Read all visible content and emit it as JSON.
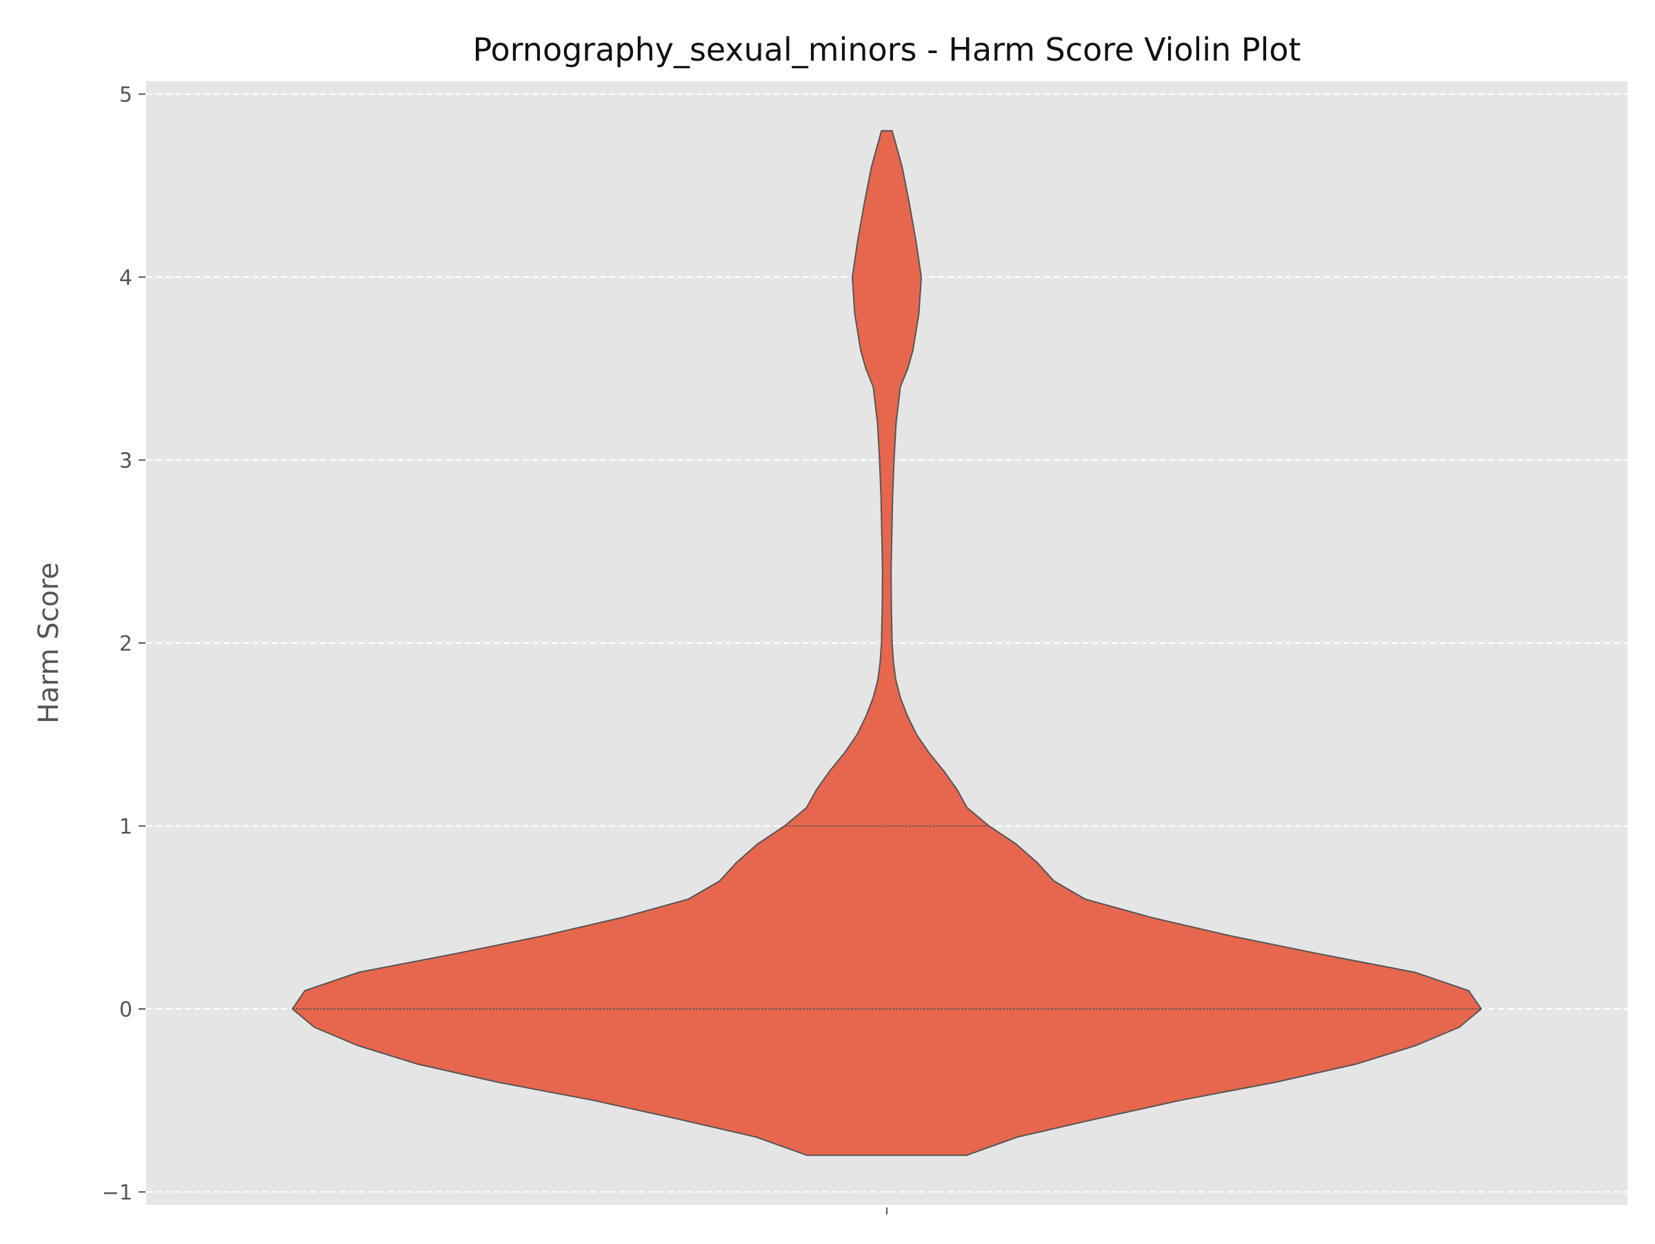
{
  "chart_data": {
    "type": "violin",
    "title": "Pornography_sexual_minors - Harm Score Violin Plot",
    "xlabel": "",
    "ylabel": "Harm Score",
    "ylim": [
      -1.07,
      5.07
    ],
    "yticks": [
      -1,
      0,
      1,
      2,
      3,
      4,
      5
    ],
    "ytick_labels": [
      "−1",
      "0",
      "1",
      "2",
      "3",
      "4",
      "5"
    ],
    "grid": {
      "y": true,
      "style": "dashed"
    },
    "background": "#e5e5e5",
    "fill_color": "#e6674d",
    "edge_color": "#555555",
    "series": [
      {
        "data_min": 0,
        "data_max": 4,
        "cut_min": -0.8,
        "cut_max": 4.8,
        "quartile_lines": [
          0,
          0,
          1
        ],
        "density_profile": [
          [
            -0.8,
            0.134
          ],
          [
            -0.7,
            0.22
          ],
          [
            -0.6,
            0.354
          ],
          [
            -0.5,
            0.493
          ],
          [
            -0.4,
            0.655
          ],
          [
            -0.3,
            0.791
          ],
          [
            -0.2,
            0.89
          ],
          [
            -0.1,
            0.963
          ],
          [
            0.0,
            1.0
          ],
          [
            0.1,
            0.979
          ],
          [
            0.2,
            0.889
          ],
          [
            0.3,
            0.729
          ],
          [
            0.4,
            0.578
          ],
          [
            0.5,
            0.445
          ],
          [
            0.6,
            0.334
          ],
          [
            0.7,
            0.281
          ],
          [
            0.8,
            0.253
          ],
          [
            0.9,
            0.218
          ],
          [
            1.0,
            0.172
          ],
          [
            1.1,
            0.135
          ],
          [
            1.2,
            0.118
          ],
          [
            1.3,
            0.096
          ],
          [
            1.4,
            0.071
          ],
          [
            1.5,
            0.05
          ],
          [
            1.6,
            0.035
          ],
          [
            1.7,
            0.023
          ],
          [
            1.8,
            0.015
          ],
          [
            1.9,
            0.011
          ],
          [
            2.0,
            0.0089
          ],
          [
            2.2,
            0.0076
          ],
          [
            2.4,
            0.0072
          ],
          [
            2.6,
            0.0085
          ],
          [
            2.8,
            0.0098
          ],
          [
            3.0,
            0.0122
          ],
          [
            3.2,
            0.0155
          ],
          [
            3.4,
            0.0229
          ],
          [
            3.5,
            0.0353
          ],
          [
            3.6,
            0.044
          ],
          [
            3.8,
            0.054
          ],
          [
            4.0,
            0.058
          ],
          [
            4.2,
            0.049
          ],
          [
            4.4,
            0.038
          ],
          [
            4.6,
            0.026
          ],
          [
            4.8,
            0.0089
          ]
        ]
      }
    ]
  }
}
